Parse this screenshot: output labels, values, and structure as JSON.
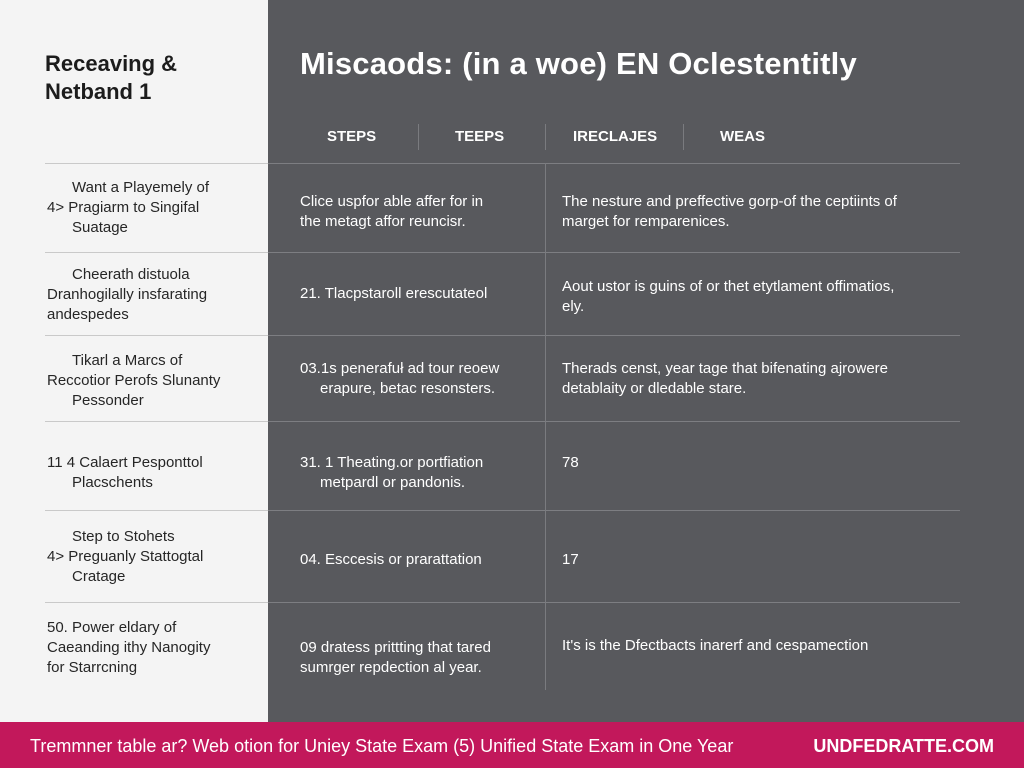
{
  "sidebar": {
    "title_line1": "Receaving &",
    "title_line2": "Netband 1",
    "rows": [
      {
        "lines": [
          "Want a Playemely of",
          "4> Pragiarm to Singifal",
          "Suatage"
        ]
      },
      {
        "lines": [
          "Cheerath distuola",
          "Dranhogilally insfarating",
          "andespedes"
        ]
      },
      {
        "lines": [
          "Tikarl a Marcs of",
          "Reccotior Perofs Slunanty",
          "Pessonder"
        ]
      },
      {
        "lines": [
          "11 4 Calaert Pesponttol",
          "Placschents"
        ]
      },
      {
        "lines": [
          "Step to Stohets",
          "4> Preguanly Stattogtal",
          "Cratage"
        ]
      },
      {
        "lines": [
          "50. Power eldary of",
          "Caeanding ithy Nanogity",
          "for Starrcning"
        ]
      }
    ]
  },
  "main": {
    "title": "Miscaods: (in a woe) EN Oclestentitly",
    "columns": [
      "STEPS",
      "TEEPS",
      "IRECLAJES",
      "WEAS"
    ],
    "rows": [
      {
        "steps": [
          "Clice uspfor able affer for in",
          "the metagt affor reuncisr."
        ],
        "weas": [
          "The nesture and preffective gorp-of the ceptiints of",
          "marget for remparenices."
        ]
      },
      {
        "steps": [
          "21. Tlacpstaroll erescutateol"
        ],
        "weas": [
          "Aout ustor is guins of or thet etytlament offimatios,",
          "ely."
        ]
      },
      {
        "steps": [
          "03.1s penerafuł ad tour reoew",
          "erapure, betac resonsters."
        ],
        "weas": [
          "Therads censt, year tage that bifenating ajrowere",
          "detablaity or dledable stare."
        ]
      },
      {
        "steps": [
          "31. 1 Theating.or portfiation",
          "metpardl or pandonis."
        ],
        "weas": [
          "78"
        ]
      },
      {
        "steps": [
          "04. Esccesis or prarattation"
        ],
        "weas": [
          "17"
        ]
      },
      {
        "steps": [
          "09 dratess prittting that tared",
          "sumrger repdection al year."
        ],
        "weas": [
          "It's is the Dfectbacts inarerf and cespamection"
        ]
      }
    ]
  },
  "footer": {
    "text": "Tremmner table ar? Web otion for Uniey State Exam (5) Unified State Exam in One Year",
    "site": "UNDFEDRATTE.COM"
  },
  "colors": {
    "sidebar_bg": "#f4f4f4",
    "main_bg": "#58595d",
    "footer_bg": "#c2185b"
  }
}
